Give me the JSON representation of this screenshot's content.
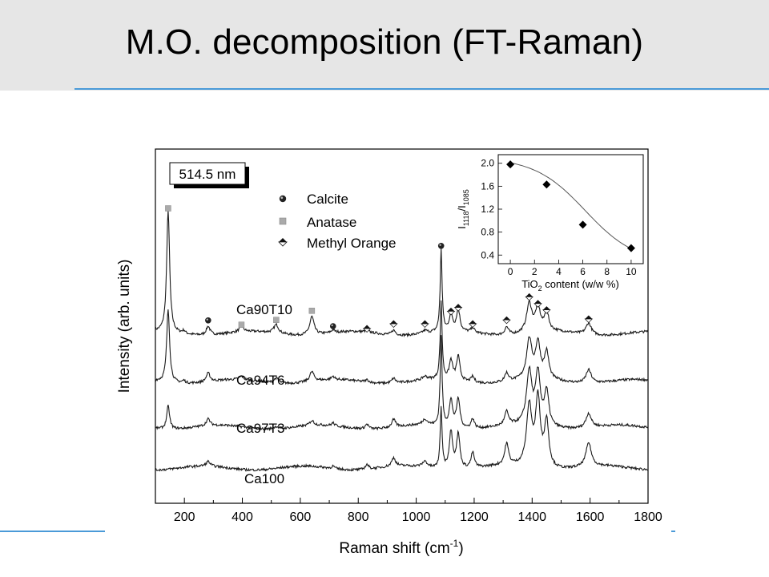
{
  "slide": {
    "title": "M.O. decomposition (FT-Raman)"
  },
  "colors": {
    "header_bg": "#e6e6e6",
    "rule": "#4a9ad8",
    "trace": "#1a1a1a"
  },
  "chart_data": [
    {
      "type": "line",
      "xlabel": "Raman shift (cm",
      "xlabel_sup": "-1",
      "xlabel_tail": ")",
      "ylabel": "Intensity (arb. units)",
      "xlim": [
        100,
        1800
      ],
      "xticks": [
        200,
        400,
        600,
        800,
        1000,
        1200,
        1400,
        1600,
        1800
      ],
      "laser_label": "514.5 nm",
      "legend": [
        {
          "marker": "sphere",
          "label": "Calcite"
        },
        {
          "marker": "square",
          "label": "Anatase"
        },
        {
          "marker": "diamond",
          "label": "Methyl Orange"
        }
      ],
      "series": [
        {
          "name": "Ca90T10",
          "offset": 3.3,
          "peaks": [
            [
              144,
              2.55,
              6
            ],
            [
              198,
              0.06,
              6
            ],
            [
              282,
              0.18,
              8
            ],
            [
              397,
              0.12,
              8
            ],
            [
              517,
              0.18,
              10
            ],
            [
              640,
              0.38,
              9
            ],
            [
              713,
              0.06,
              6
            ],
            [
              830,
              0.05,
              7
            ],
            [
              922,
              0.1,
              8
            ],
            [
              1030,
              0.06,
              10
            ],
            [
              1086,
              1.7,
              4
            ],
            [
              1120,
              0.35,
              7
            ],
            [
              1145,
              0.45,
              7
            ],
            [
              1195,
              0.1,
              7
            ],
            [
              1312,
              0.16,
              8
            ],
            [
              1390,
              0.6,
              11
            ],
            [
              1420,
              0.5,
              10
            ],
            [
              1450,
              0.38,
              9
            ],
            [
              1595,
              0.24,
              11
            ]
          ]
        },
        {
          "name": "Ca94T6",
          "offset": 2.3,
          "peaks": [
            [
              144,
              1.52,
              6
            ],
            [
              198,
              0.05,
              6
            ],
            [
              282,
              0.18,
              8
            ],
            [
              397,
              0.07,
              8
            ],
            [
              517,
              0.1,
              10
            ],
            [
              640,
              0.2,
              9
            ],
            [
              713,
              0.07,
              6
            ],
            [
              830,
              0.05,
              7
            ],
            [
              922,
              0.1,
              8
            ],
            [
              1030,
              0.07,
              10
            ],
            [
              1086,
              1.62,
              4
            ],
            [
              1120,
              0.4,
              7
            ],
            [
              1145,
              0.5,
              7
            ],
            [
              1195,
              0.12,
              7
            ],
            [
              1312,
              0.18,
              8
            ],
            [
              1390,
              0.82,
              11
            ],
            [
              1420,
              0.72,
              10
            ],
            [
              1450,
              0.55,
              9
            ],
            [
              1595,
              0.28,
              11
            ]
          ]
        },
        {
          "name": "Ca97T3",
          "offset": 1.35,
          "peaks": [
            [
              144,
              0.48,
              6
            ],
            [
              282,
              0.14,
              8
            ],
            [
              517,
              0.05,
              10
            ],
            [
              640,
              0.1,
              9
            ],
            [
              713,
              0.06,
              6
            ],
            [
              830,
              0.1,
              7
            ],
            [
              922,
              0.16,
              8
            ],
            [
              1030,
              0.12,
              10
            ],
            [
              1086,
              1.85,
              4
            ],
            [
              1120,
              0.55,
              7
            ],
            [
              1145,
              0.6,
              7
            ],
            [
              1195,
              0.2,
              7
            ],
            [
              1312,
              0.28,
              8
            ],
            [
              1390,
              1.1,
              11
            ],
            [
              1420,
              1.05,
              10
            ],
            [
              1450,
              0.7,
              9
            ],
            [
              1595,
              0.3,
              11
            ]
          ]
        },
        {
          "name": "Ca100",
          "offset": 0.5,
          "peaks": [
            [
              282,
              0.1,
              8
            ],
            [
              713,
              0.05,
              6
            ],
            [
              830,
              0.1,
              7
            ],
            [
              922,
              0.18,
              8
            ],
            [
              1030,
              0.12,
              10
            ],
            [
              1086,
              1.25,
              4
            ],
            [
              1120,
              0.78,
              7
            ],
            [
              1145,
              0.72,
              7
            ],
            [
              1195,
              0.32,
              7
            ],
            [
              1312,
              0.45,
              8
            ],
            [
              1390,
              1.25,
              11
            ],
            [
              1420,
              1.4,
              10
            ],
            [
              1450,
              0.95,
              9
            ],
            [
              1595,
              0.5,
              11
            ]
          ]
        }
      ],
      "markers": [
        {
          "type": "square",
          "x": 144,
          "y": 5.9
        },
        {
          "type": "sphere",
          "x": 282,
          "y": 3.57
        },
        {
          "type": "square",
          "x": 397,
          "y": 3.48
        },
        {
          "type": "square",
          "x": 517,
          "y": 3.58
        },
        {
          "type": "square",
          "x": 640,
          "y": 3.77
        },
        {
          "type": "sphere",
          "x": 713,
          "y": 3.45
        },
        {
          "type": "diamond",
          "x": 830,
          "y": 3.4
        },
        {
          "type": "diamond",
          "x": 922,
          "y": 3.5
        },
        {
          "type": "diamond",
          "x": 1030,
          "y": 3.5
        },
        {
          "type": "sphere",
          "x": 1086,
          "y": 5.12
        },
        {
          "type": "diamond",
          "x": 1120,
          "y": 3.76
        },
        {
          "type": "diamond",
          "x": 1145,
          "y": 3.84
        },
        {
          "type": "diamond",
          "x": 1195,
          "y": 3.5
        },
        {
          "type": "diamond",
          "x": 1312,
          "y": 3.58
        },
        {
          "type": "diamond",
          "x": 1390,
          "y": 4.06
        },
        {
          "type": "diamond",
          "x": 1420,
          "y": 3.92
        },
        {
          "type": "diamond",
          "x": 1450,
          "y": 3.79
        },
        {
          "type": "diamond",
          "x": 1595,
          "y": 3.6
        }
      ]
    },
    {
      "type": "scatter",
      "xlabel": "TiO",
      "xlabel_sub": "2",
      "xlabel_tail": " content (w/w %)",
      "ylabel": "I",
      "ylabel_sub1": "1118",
      "ylabel_mid": "/I",
      "ylabel_sub2": "1085",
      "xlim": [
        -1,
        11
      ],
      "ylim": [
        0.25,
        2.15
      ],
      "xticks": [
        0,
        2,
        4,
        6,
        8,
        10
      ],
      "yticks": [
        0.4,
        0.8,
        1.2,
        1.6,
        2.0
      ],
      "ytick_labels": [
        "0.4",
        "0.8",
        "1.2",
        "1.6",
        "2.0"
      ],
      "x": [
        0,
        3,
        6,
        10
      ],
      "y": [
        1.98,
        1.63,
        0.93,
        0.52
      ]
    }
  ]
}
